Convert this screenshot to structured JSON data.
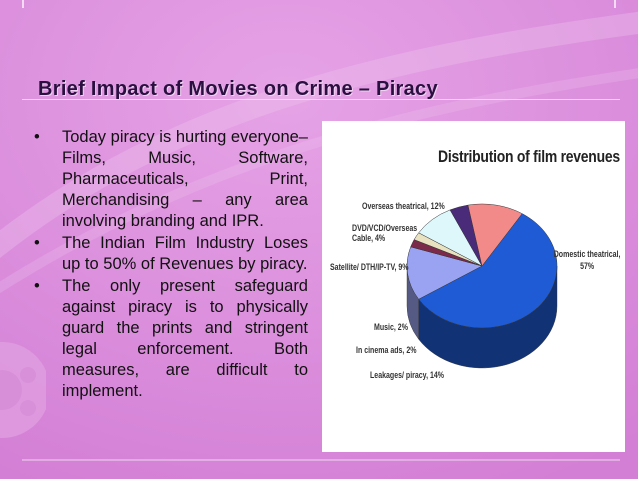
{
  "slide": {
    "title": "Brief Impact of Movies on Crime – Piracy",
    "bullets": [
      "Today piracy is hurting everyone– Films, Music, Software, Pharmaceuticals, Print, Merchandising – any area involving branding and IPR.",
      "The Indian Film Industry Loses up to 50% of Revenues by piracy.",
      "The only present safeguard against piracy is to physically guard the prints and stringent legal enforcement. Both measures, are difficult to implement."
    ],
    "bullet_char": "•"
  },
  "chart_data": {
    "type": "pie",
    "title": "Distribution of film revenues",
    "slices": [
      {
        "label": "Domestic theatrical, 57%",
        "value": 57,
        "color": "#1f5bd4"
      },
      {
        "label": "Leakages/ piracy, 14%",
        "value": 14,
        "color": "#9aa3f2"
      },
      {
        "label": "In cinema ads, 2%",
        "value": 2,
        "color": "#7b2a4a"
      },
      {
        "label": "Music, 2%",
        "value": 2,
        "color": "#e8e2c0"
      },
      {
        "label": "Satellite/ DTH/IP-TV, 9%",
        "value": 9,
        "color": "#ddf7fb"
      },
      {
        "label": "DVD/VCD/Overseas Cable, 4%",
        "value": 4,
        "color": "#4a2b7a"
      },
      {
        "label": "Overseas theatrical, 12%",
        "value": 12,
        "color": "#f28a8a"
      }
    ]
  }
}
